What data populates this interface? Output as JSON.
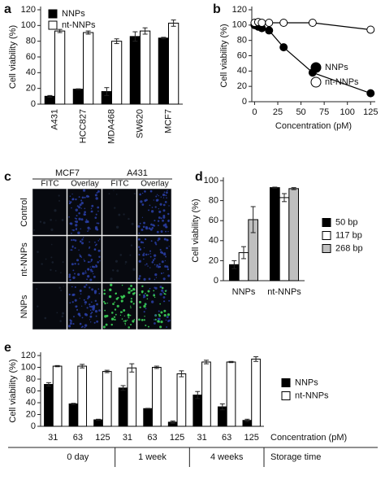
{
  "chart_data": [
    {
      "type": "bar",
      "panel": "a",
      "ylabel": "Cell viability (%)",
      "categories": [
        "A431",
        "HCC827",
        "MDA468",
        "SW620",
        "MCF7"
      ],
      "series": [
        {
          "name": "NNPs",
          "color": "#000000",
          "values": [
            10,
            19,
            16,
            86,
            84
          ],
          "errors": [
            1,
            0.5,
            5,
            6,
            1
          ]
        },
        {
          "name": "nt-NNPs",
          "color": "#ffffff",
          "values": [
            93,
            91,
            80,
            93,
            103
          ],
          "errors": [
            2,
            2,
            3,
            4,
            4
          ]
        }
      ],
      "ylim": [
        0,
        120
      ],
      "yticks": [
        0,
        20,
        40,
        60,
        80,
        100,
        120
      ],
      "legend": "upper left"
    },
    {
      "type": "line",
      "panel": "b",
      "ylabel": "Cell viability (%)",
      "xlabel": "Concentration (pM)",
      "x": [
        0,
        3.9,
        7.8,
        15.6,
        31.3,
        62.5,
        125
      ],
      "series": [
        {
          "name": "NNPs",
          "color": "#000000",
          "values": [
            100,
            98,
            96,
            93,
            71,
            38,
            11
          ]
        },
        {
          "name": "nt-NNPs",
          "color": "#ffffff",
          "values": [
            103,
            104,
            103,
            103,
            103,
            103,
            94
          ]
        }
      ],
      "xlim": [
        -3,
        130
      ],
      "xticks": [
        0,
        25,
        50,
        75,
        100,
        125
      ],
      "ylim": [
        0,
        120
      ],
      "yticks": [
        0,
        20,
        40,
        60,
        80,
        100,
        120
      ],
      "legend": "lower right"
    },
    {
      "type": "image_grid",
      "panel": "c",
      "column_groups": [
        "MCF7",
        "A431"
      ],
      "columns": [
        "FITC",
        "Overlay",
        "FITC",
        "Overlay"
      ],
      "rows": [
        "Control",
        "nt-NNPs",
        "NNPs"
      ]
    },
    {
      "type": "bar",
      "panel": "d",
      "ylabel": "Cell viability (%)",
      "categories": [
        "NNPs",
        "nt-NNPs"
      ],
      "series": [
        {
          "name": "50 bp",
          "color": "#000000",
          "values": [
            16,
            93
          ],
          "errors": [
            4,
            0.5
          ]
        },
        {
          "name": "117 bp",
          "color": "#ffffff",
          "values": [
            28,
            83
          ],
          "errors": [
            6,
            4
          ]
        },
        {
          "name": "268 bp",
          "color": "#bfbfbf",
          "values": [
            61,
            92
          ],
          "errors": [
            13,
            1
          ]
        }
      ],
      "ylim": [
        0,
        100
      ],
      "yticks": [
        0,
        20,
        40,
        60,
        80,
        100
      ],
      "legend": "right"
    },
    {
      "type": "bar",
      "panel": "e",
      "ylabel": "Cell viability (%)",
      "xlabel": "Concentration (pM)",
      "group_title": "Storage time",
      "categories": [
        "31",
        "63",
        "125",
        "31",
        "63",
        "125",
        "31",
        "63",
        "125"
      ],
      "group_labels": [
        "0 day",
        "1 week",
        "4 weeks"
      ],
      "series": [
        {
          "name": "NNPs",
          "color": "#000000",
          "values": [
            71,
            38,
            11,
            65,
            30,
            7,
            53,
            33,
            10
          ],
          "errors": [
            3,
            1,
            1,
            4,
            0.5,
            2,
            6,
            5,
            2
          ]
        },
        {
          "name": "nt-NNPs",
          "color": "#ffffff",
          "values": [
            102,
            102,
            93,
            99,
            100,
            89,
            109,
            109,
            114
          ],
          "errors": [
            1,
            3,
            2,
            7,
            2,
            5,
            3,
            1,
            4
          ]
        }
      ],
      "ylim": [
        0,
        120
      ],
      "yticks": [
        0,
        20,
        40,
        60,
        80,
        100,
        120
      ],
      "legend": "right"
    }
  ]
}
